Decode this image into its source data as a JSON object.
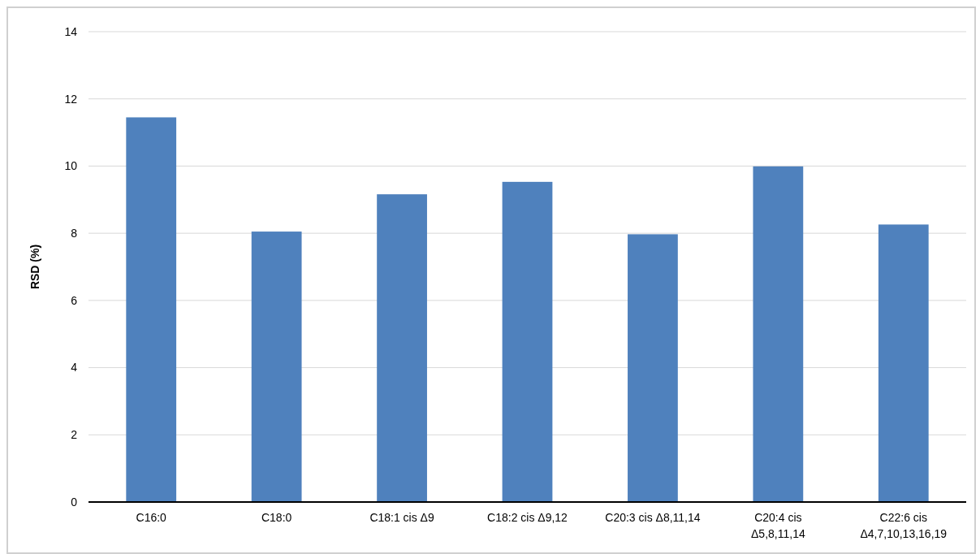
{
  "chart_data": {
    "type": "bar",
    "ylabel": "RSD (%)",
    "categories": [
      "C16:0",
      "C18:0",
      "C18:1 cis Δ9",
      "C18:2 cis Δ9,12",
      "C20:3 cis Δ8,11,14",
      "C20:4 cis Δ5,8,11,14",
      "C22:6 cis Δ4,7,10,13,16,19"
    ],
    "values": [
      11.45,
      8.05,
      9.16,
      9.53,
      7.97,
      9.99,
      8.26
    ],
    "color": "#4f81bd",
    "ylim": [
      0,
      14
    ],
    "yticks": [
      0,
      2,
      4,
      6,
      8,
      10,
      12,
      14
    ],
    "grid": "y"
  }
}
